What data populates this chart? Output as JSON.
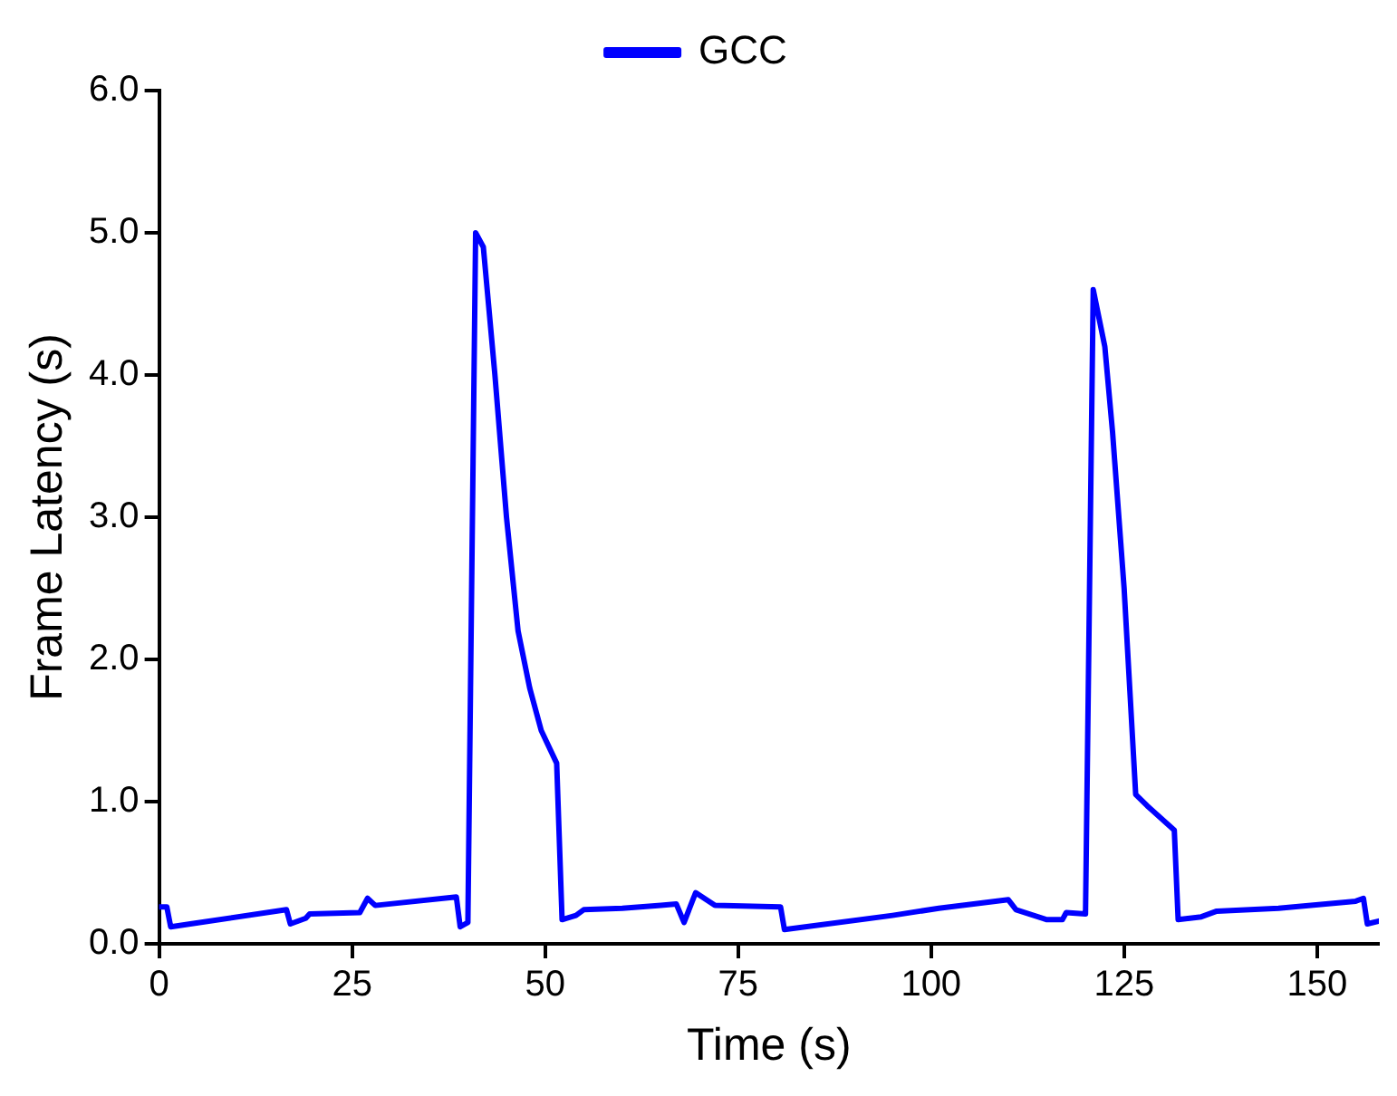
{
  "chart_data": {
    "type": "line",
    "xlabel": "Time (s)",
    "ylabel": "Frame Latency (s)",
    "xlim": [
      0,
      158
    ],
    "xticks": [
      0,
      25,
      50,
      75,
      100,
      125,
      150
    ],
    "ylim": [
      0,
      6
    ],
    "yticks": [
      {
        "value": 0,
        "label": "0.0"
      },
      {
        "value": 1,
        "label": "1.0"
      },
      {
        "value": 2,
        "label": "2.0"
      },
      {
        "value": 3,
        "label": "3.0"
      },
      {
        "value": 4,
        "label": "4.0"
      },
      {
        "value": 5,
        "label": "5.0"
      },
      {
        "value": 6,
        "label": "6.0"
      }
    ],
    "grid": false,
    "legend": "top",
    "marker": "none",
    "line_style": "solid",
    "series": [
      {
        "name": "GCC",
        "color": "#0000ff",
        "x": [
          0,
          1,
          1.5,
          16.5,
          17,
          19,
          19.5,
          26,
          27,
          28,
          38.5,
          39,
          40,
          41,
          42,
          43.5,
          45,
          46.5,
          48,
          49.5,
          51.5,
          52.2,
          54,
          55,
          60,
          65,
          67,
          68,
          69.5,
          72,
          80.5,
          81,
          95,
          101,
          110,
          111,
          115,
          117,
          117.5,
          120,
          121,
          122.5,
          123.5,
          125,
          126.5,
          128,
          131.5,
          132,
          135,
          137,
          145,
          155,
          156,
          156.5,
          158
        ],
        "values": [
          0.26,
          0.26,
          0.12,
          0.24,
          0.14,
          0.18,
          0.21,
          0.22,
          0.32,
          0.27,
          0.33,
          0.12,
          0.15,
          5.0,
          4.9,
          4.0,
          3.0,
          2.2,
          1.8,
          1.5,
          1.27,
          0.17,
          0.2,
          0.24,
          0.25,
          0.27,
          0.28,
          0.15,
          0.36,
          0.27,
          0.26,
          0.1,
          0.2,
          0.25,
          0.31,
          0.24,
          0.17,
          0.17,
          0.22,
          0.21,
          4.6,
          4.2,
          3.6,
          2.5,
          1.05,
          0.97,
          0.8,
          0.17,
          0.19,
          0.23,
          0.25,
          0.3,
          0.32,
          0.14,
          0.16
        ]
      }
    ]
  }
}
